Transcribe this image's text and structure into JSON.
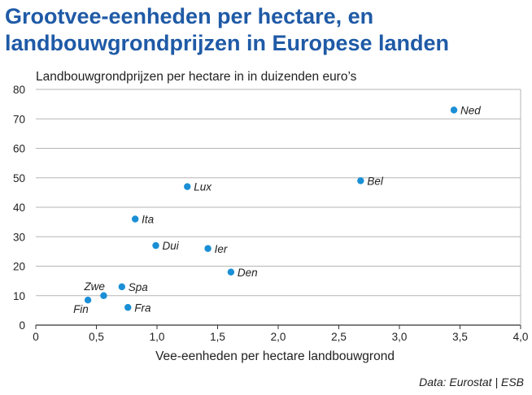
{
  "chart_data": {
    "type": "scatter",
    "title": "Grootvee-eenheden per hectare, en landbouwgrondprijzen in Europese landen",
    "ylabel": "Landbouwgrondprijzen per hectare in in duizenden euro’s",
    "xlabel": "Vee-eenheden per hectare landbouwgrond",
    "source": "Data: Eurostat | ESB",
    "xlim": [
      0,
      4
    ],
    "ylim": [
      0,
      80
    ],
    "x_ticks": [
      0,
      0.5,
      1,
      1.5,
      2,
      2.5,
      3,
      3.5,
      4
    ],
    "x_tick_labels": [
      "0",
      "0,5",
      "1,0",
      "1,5",
      "2,0",
      "2,5",
      "3,0",
      "3,5",
      "4,0"
    ],
    "y_ticks": [
      0,
      10,
      20,
      30,
      40,
      50,
      60,
      70,
      80
    ],
    "y_tick_labels": [
      "0",
      "10",
      "20",
      "30",
      "40",
      "50",
      "60",
      "70",
      "80"
    ],
    "grid": "horizontal",
    "color": "#1a8fd6",
    "points": [
      {
        "label": "Ned",
        "x": 3.45,
        "y": 73
      },
      {
        "label": "Bel",
        "x": 2.68,
        "y": 49
      },
      {
        "label": "Lux",
        "x": 1.25,
        "y": 47
      },
      {
        "label": "Ita",
        "x": 0.82,
        "y": 36
      },
      {
        "label": "Dui",
        "x": 0.99,
        "y": 27
      },
      {
        "label": "Ier",
        "x": 1.42,
        "y": 26
      },
      {
        "label": "Den",
        "x": 1.61,
        "y": 18
      },
      {
        "label": "Spa",
        "x": 0.71,
        "y": 13
      },
      {
        "label": "Zwe",
        "x": 0.56,
        "y": 10
      },
      {
        "label": "Fin",
        "x": 0.43,
        "y": 8.5
      },
      {
        "label": "Fra",
        "x": 0.76,
        "y": 6
      }
    ]
  }
}
